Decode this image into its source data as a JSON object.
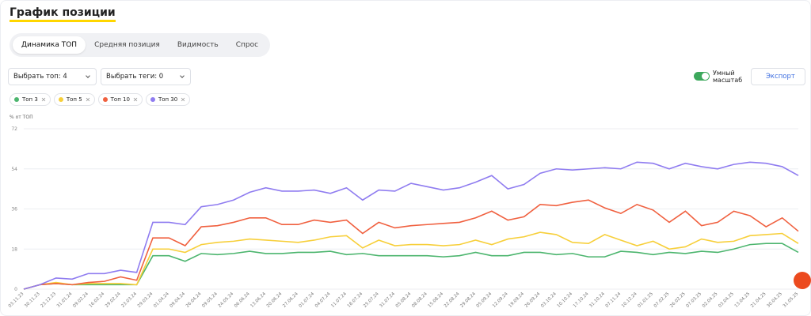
{
  "ui": {
    "title": "График позиции",
    "tabs": [
      "Динамика ТОП",
      "Средняя позиция",
      "Видимость",
      "Спрос"
    ],
    "selects": [
      "Выбрать топ: 4",
      "Выбрать теги: 0"
    ],
    "toggle_label": "Умный масштаб",
    "export": "Экспорт"
  },
  "chart_data": {
    "type": "line",
    "ylabel": "% от ТОП",
    "categories": [
      "03.11.23",
      "30.11.23",
      "23.12.23",
      "31.01.24",
      "09.02.24",
      "16.02.24",
      "29.02.24",
      "23.03.24",
      "29.03.24",
      "01.04.24",
      "09.04.24",
      "26.04.24",
      "09.05.24",
      "24.05.24",
      "06.06.24",
      "13.06.24",
      "20.06.24",
      "27.06.24",
      "01.07.24",
      "04.07.24",
      "11.07.24",
      "18.07.24",
      "25.07.24",
      "31.07.24",
      "05.08.24",
      "08.08.24",
      "15.08.24",
      "22.08.24",
      "29.08.24",
      "05.09.24",
      "12.09.24",
      "19.09.24",
      "26.09.24",
      "03.10.24",
      "10.10.24",
      "17.10.24",
      "31.10.24",
      "07.11.24",
      "10.12.24",
      "01.01.25",
      "07.02.25",
      "26.02.25",
      "07.03.25",
      "02.04.25",
      "03.04.25",
      "13.04.25",
      "21.04.25",
      "30.04.25",
      "31.05.25"
    ],
    "series": [
      {
        "name": "Топ 3",
        "color": "#4cb56e",
        "values": [
          0,
          2,
          2.5,
          2,
          2,
          2,
          2,
          2,
          15,
          15,
          12.5,
          16,
          15.5,
          16,
          17,
          16,
          16,
          16.5,
          16.5,
          17,
          15.5,
          16,
          15,
          15,
          15,
          15,
          14.5,
          15,
          16.5,
          15,
          15,
          16.5,
          16.5,
          15.5,
          16,
          14.5,
          14.5,
          17,
          16.5,
          15.5,
          16.5,
          16,
          17,
          16.5,
          18,
          20,
          20.5,
          20.5,
          16.5
        ]
      },
      {
        "name": "Топ 5",
        "color": "#f7cf3a",
        "values": [
          0,
          2,
          3,
          2,
          2.5,
          2.5,
          2.5,
          2,
          18,
          18,
          16.5,
          20,
          21,
          21.5,
          22.5,
          22,
          21.5,
          21,
          22,
          23.5,
          24,
          18.5,
          22,
          19.5,
          20,
          20,
          19.5,
          20,
          22,
          20,
          22.5,
          23.5,
          25.5,
          24.5,
          21,
          20.5,
          24.5,
          22,
          19.5,
          21.5,
          18,
          19,
          22.5,
          21,
          21.5,
          24,
          24.5,
          25,
          20.5
        ]
      },
      {
        "name": "Топ 10",
        "color": "#f0603f",
        "values": [
          0,
          2,
          2.5,
          2,
          3,
          3.5,
          5.5,
          4,
          23,
          23,
          19.5,
          28,
          28.5,
          30,
          32,
          32,
          29,
          29,
          31,
          30,
          31,
          25,
          30,
          27.5,
          28.5,
          29,
          29.5,
          30,
          32,
          35,
          31,
          32.5,
          38,
          37.5,
          39,
          40,
          36.5,
          34,
          38,
          35.5,
          30,
          35,
          28.5,
          30,
          35,
          33,
          28,
          32,
          26
        ]
      },
      {
        "name": "Топ 30",
        "color": "#8f7cf0",
        "values": [
          0,
          2,
          5,
          4.5,
          7,
          7,
          8.5,
          7.5,
          30,
          30,
          29,
          37,
          38,
          40,
          43.5,
          45.5,
          44,
          44,
          44.5,
          43,
          45.5,
          40,
          44.5,
          44,
          47.5,
          46,
          44.5,
          45.5,
          48,
          51,
          45,
          47,
          52,
          54,
          53.5,
          54,
          54.5,
          54,
          57,
          56.5,
          54,
          56.5,
          55,
          54,
          56,
          57,
          56.5,
          55,
          51
        ]
      }
    ],
    "ylim": [
      0,
      72
    ],
    "yticks": [
      0,
      18,
      36,
      54,
      72
    ],
    "grid": true
  }
}
